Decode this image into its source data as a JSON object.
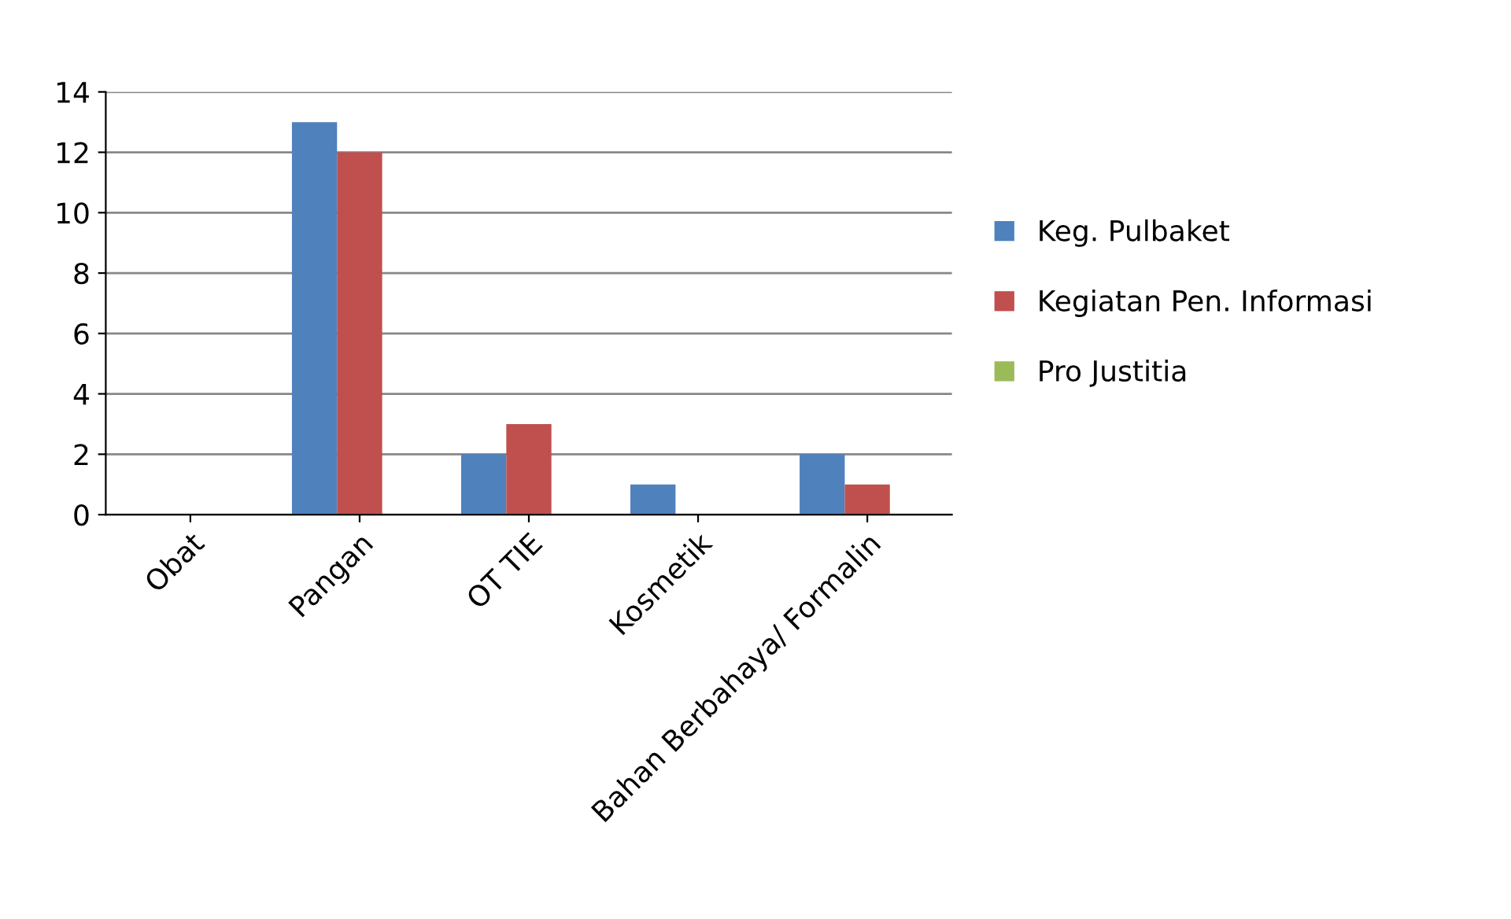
{
  "chart_data": {
    "type": "bar",
    "categories": [
      "Obat",
      "Pangan",
      "OT TIE",
      "Kosmetik",
      "Bahan Berbahaya/ Formalin"
    ],
    "series": [
      {
        "name": "Keg. Pulbaket",
        "color": "#4f81bd",
        "values": [
          0,
          13,
          2,
          1,
          2
        ]
      },
      {
        "name": "Kegiatan Pen. Informasi",
        "color": "#c0504d",
        "values": [
          0,
          12,
          3,
          0,
          1
        ]
      },
      {
        "name": "Pro Justitia",
        "color": "#9bbb59",
        "values": [
          0,
          0,
          0,
          0,
          0
        ]
      }
    ],
    "ylim": [
      0,
      14
    ],
    "yticks": [
      0,
      2,
      4,
      6,
      8,
      10,
      12,
      14
    ],
    "grid": "y",
    "legend": "right"
  }
}
